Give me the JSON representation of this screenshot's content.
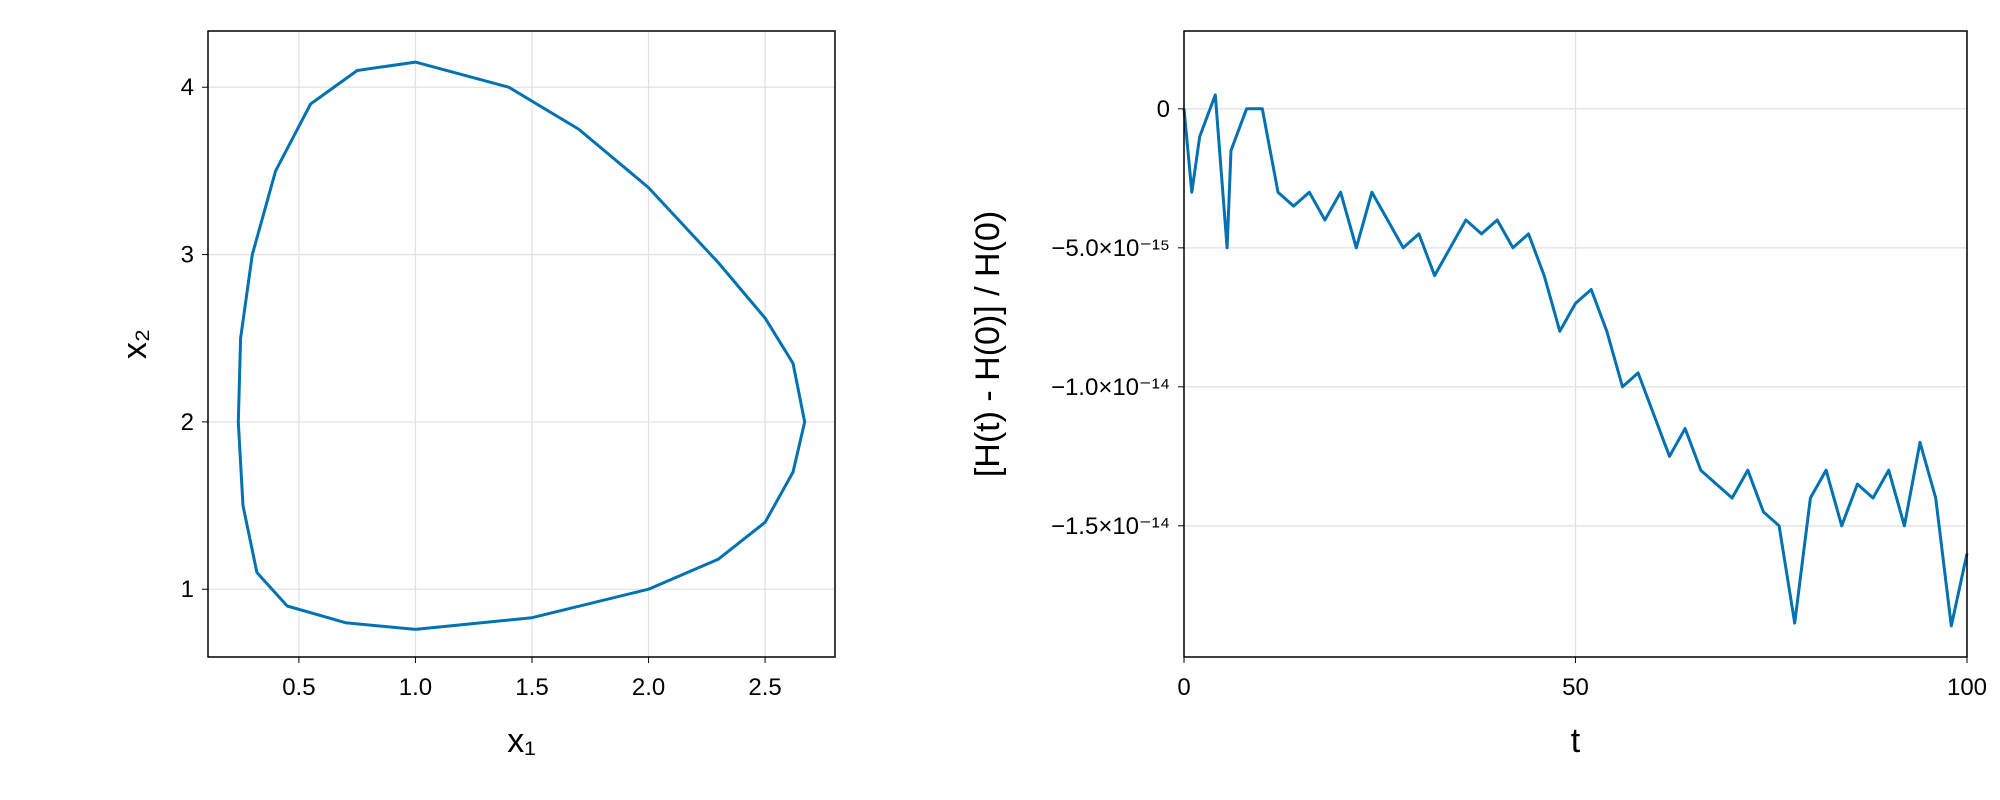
{
  "chart_data": [
    {
      "type": "line",
      "xlabel": "x₁",
      "ylabel": "x₂",
      "x": [
        1.0,
        1.5,
        2.0,
        2.3,
        2.5,
        2.62,
        2.67,
        2.62,
        2.5,
        2.3,
        2.0,
        1.7,
        1.4,
        1.0,
        0.75,
        0.55,
        0.4,
        0.3,
        0.25,
        0.24,
        0.26,
        0.32,
        0.45,
        0.7,
        1.0
      ],
      "series": [
        {
          "color": "#0072b2",
          "values": [
            0.76,
            0.83,
            1.0,
            1.18,
            1.4,
            1.7,
            2.0,
            2.35,
            2.62,
            2.95,
            3.4,
            3.75,
            4.0,
            4.15,
            4.1,
            3.9,
            3.5,
            3.0,
            2.5,
            2.0,
            1.5,
            1.1,
            0.9,
            0.8,
            0.76
          ]
        }
      ],
      "xlim": [
        0.11,
        2.8
      ],
      "ylim": [
        0.595,
        4.336
      ],
      "xticks": [
        0.5,
        {
          "value": 1.0,
          "label": "1.0"
        },
        1.5,
        {
          "value": 2.0,
          "label": "2.0"
        },
        2.5
      ],
      "yticks": [
        1,
        2,
        3,
        4
      ],
      "grid": true
    },
    {
      "type": "line",
      "xlabel": "t",
      "ylabel": "[H(t) - H(0)] / H(0)",
      "x": [
        0,
        1,
        2,
        4,
        5.5,
        6,
        8,
        10,
        12,
        14,
        16,
        18,
        20,
        22,
        24,
        26,
        28,
        30,
        32,
        34,
        36,
        38,
        40,
        42,
        44,
        46,
        48,
        50,
        52,
        54,
        56,
        58,
        60,
        62,
        64,
        66,
        68,
        70,
        72,
        74,
        76,
        78,
        80,
        82,
        84,
        86,
        88,
        90,
        92,
        94,
        96,
        98,
        100
      ],
      "series": [
        {
          "color": "#0072b2",
          "values": [
            0,
            -3e-15,
            -1e-15,
            5e-16,
            -5e-15,
            -1.5e-15,
            0,
            0,
            -3e-15,
            -3.5e-15,
            -3e-15,
            -4e-15,
            -3e-15,
            -5e-15,
            -3e-15,
            -4e-15,
            -5e-15,
            -4.5e-15,
            -6e-15,
            -5e-15,
            -4e-15,
            -4.5e-15,
            -4e-15,
            -5e-15,
            -4.5e-15,
            -6e-15,
            -8e-15,
            -7e-15,
            -6.5e-15,
            -8e-15,
            -1e-14,
            -9.5e-15,
            -1.1e-14,
            -1.25e-14,
            -1.15e-14,
            -1.3e-14,
            -1.35e-14,
            -1.4e-14,
            -1.3e-14,
            -1.45e-14,
            -1.5e-14,
            -1.85e-14,
            -1.4e-14,
            -1.3e-14,
            -1.5e-14,
            -1.35e-14,
            -1.4e-14,
            -1.3e-14,
            -1.5e-14,
            -1.2e-14,
            -1.4e-14,
            -1.86e-14,
            -1.6e-14
          ]
        }
      ],
      "xlim": [
        0,
        100
      ],
      "ylim": [
        -1.972e-14,
        2.8e-15
      ],
      "xticks": [
        0,
        50,
        100
      ],
      "yticks": [
        0,
        {
          "value": -5e-15,
          "label": "−5.0×10⁻¹⁵"
        },
        {
          "value": -1e-14,
          "label": "−1.0×10⁻¹⁴"
        },
        {
          "value": -1.5e-14,
          "label": "−1.5×10⁻¹⁴"
        }
      ],
      "grid": true
    }
  ]
}
